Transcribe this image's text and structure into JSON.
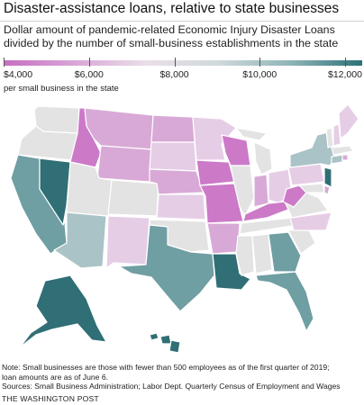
{
  "title": "Disaster-assistance loans, relative to state businesses",
  "subtitle_lines": [
    "Dollar amount of pandemic-related Economic Injury Disaster Loans",
    "divided by the number of small-business establishments in the state"
  ],
  "legend": {
    "unit": "per small business in the state",
    "ticks": [
      {
        "value": 4000,
        "label": "$4,000"
      },
      {
        "value": 6000,
        "label": "$6,000"
      },
      {
        "value": 8000,
        "label": "$8,000"
      },
      {
        "value": 10000,
        "label": "$10,000"
      },
      {
        "value": 12000,
        "label": "$12,000"
      }
    ],
    "range": [
      4000,
      12400
    ],
    "colors": [
      "#c66fc1",
      "#d9a6d7",
      "#e9dfe9",
      "#cfd9db",
      "#8fb5b9",
      "#2d7277"
    ]
  },
  "map_colors": {
    "magenta": "#cc79c8",
    "pink": "#d8a9d6",
    "light_pink": "#e6cde6",
    "neutral": "#e3e3e3",
    "light_teal": "#a9c3c6",
    "teal": "#6f9ea3",
    "dark_teal": "#2f6f75",
    "border": "#ffffff"
  },
  "note_lines": [
    "Note: Small businesses are those with fewer than 500 employees as of the first quarter of 2019;",
    "loan amounts are as of June 6.",
    "Sources: Small Business Administration; Labor Dept. Quarterly Census of Employment and Wages"
  ],
  "credit": "THE WASHINGTON POST"
}
